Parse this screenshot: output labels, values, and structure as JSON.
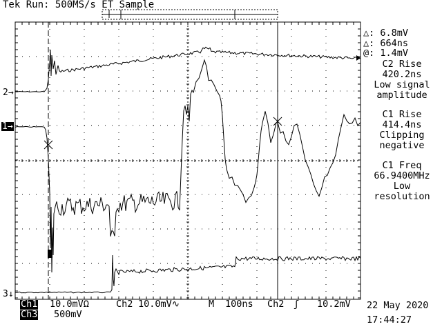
{
  "header": {
    "status": "Tek Run: 500MS/s ET Sample"
  },
  "measurements": {
    "delta_v": "△: 6.8mV",
    "delta_t": "△: 664ns",
    "at_v": "@: 1.4mV",
    "m1_title": "C2 Rise",
    "m1_value": "420.2ns",
    "m1_note_1": "Low signal",
    "m1_note_2": "amplitude",
    "m2_title": "C1 Rise",
    "m2_value": "414.4ns",
    "m2_note_1": "Clipping",
    "m2_note_2": "negative",
    "m3_title": "C1 Freq",
    "m3_value": "66.9400MHz",
    "m3_note_1": "Low",
    "m3_note_2": "resolution"
  },
  "channel_markers": {
    "ch2": "2→",
    "ch1": "1→",
    "ch3": "3↓"
  },
  "footer": {
    "ch1_label": "Ch1",
    "ch1_scale": "10.0mVΩ",
    "ch2_label": "Ch2",
    "ch2_scale": "10.0mV∿",
    "timebase_label": "M",
    "timebase": "100ns",
    "trigger_source": "Ch2",
    "trigger_slope_icon": "rising-edge-icon",
    "trigger_slope_glyph": "ʃ",
    "trigger_level": "10.2mV",
    "ch3_label": "Ch3",
    "ch3_scale": "500mV",
    "date": "22 May 2020",
    "time": "17:44:27"
  },
  "colors": {
    "background": "#ffffff",
    "foreground": "#000000"
  }
}
